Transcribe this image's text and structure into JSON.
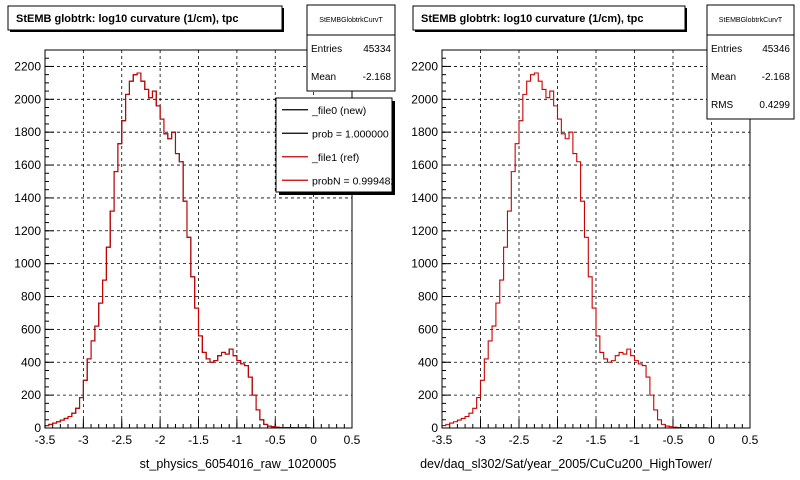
{
  "chart_data": [
    {
      "type": "histogram",
      "title": "StEMB globtrk: log10 curvature (1/cm), tpc",
      "xlabel": "st_physics_6054016_raw_1020005",
      "ylabel": "",
      "xlim": [
        -3.5,
        0.5
      ],
      "ylim": [
        0,
        2300
      ],
      "xticks": [
        -3.5,
        -3,
        -2.5,
        -2,
        -1.5,
        -1,
        -0.5,
        0,
        0.5
      ],
      "yticks": [
        0,
        200,
        400,
        600,
        800,
        1000,
        1200,
        1400,
        1600,
        1800,
        2000,
        2200
      ],
      "grid": true,
      "stats": {
        "name": "StEMBGlobtrkCurvT",
        "rows": [
          {
            "label": "Entries",
            "value": "45334"
          },
          {
            "label": "Mean",
            "value": "-2.168"
          }
        ]
      },
      "legend": {
        "position": "top-right",
        "entries": [
          {
            "label": "_file0 (new)",
            "color": "#000000"
          },
          {
            "label": "prob = 1.000000",
            "color": "#000000"
          },
          {
            "label": "_file1 (ref)",
            "color": "#cc0000"
          },
          {
            "label": "probN = 0.999482",
            "color": "#cc0000"
          }
        ]
      },
      "series": [
        {
          "name": "_file0 (new)",
          "color": "#000000",
          "bin_edges": [
            -3.5,
            0.5
          ],
          "values": [
            15,
            22,
            30,
            38,
            48,
            58,
            70,
            90,
            120,
            185,
            290,
            420,
            530,
            620,
            760,
            900,
            1100,
            1320,
            1560,
            1730,
            1870,
            2030,
            2110,
            2150,
            2160,
            2110,
            2060,
            2010,
            2050,
            1960,
            1880,
            1790,
            1760,
            1800,
            1670,
            1620,
            1380,
            1160,
            920,
            730,
            560,
            460,
            420,
            400,
            410,
            440,
            460,
            450,
            480,
            440,
            410,
            390,
            380,
            310,
            200,
            110,
            50,
            22,
            12,
            8,
            5,
            3,
            3,
            2,
            2,
            1,
            1,
            1,
            1,
            0,
            0,
            0,
            0,
            0,
            0,
            0,
            0,
            0,
            0,
            0
          ]
        },
        {
          "name": "_file1 (ref)",
          "color": "#cc0000",
          "bin_edges": [
            -3.5,
            0.5
          ],
          "values": [
            15,
            22,
            30,
            38,
            48,
            58,
            70,
            90,
            120,
            185,
            290,
            420,
            530,
            620,
            760,
            900,
            1100,
            1320,
            1560,
            1730,
            1870,
            2030,
            2110,
            2150,
            2160,
            2110,
            2060,
            2010,
            2050,
            1960,
            1880,
            1790,
            1760,
            1800,
            1670,
            1620,
            1380,
            1160,
            920,
            730,
            560,
            460,
            420,
            400,
            410,
            440,
            460,
            450,
            480,
            440,
            410,
            390,
            380,
            310,
            200,
            110,
            50,
            22,
            12,
            8,
            5,
            3,
            3,
            2,
            2,
            1,
            1,
            1,
            1,
            0,
            0,
            0,
            0,
            0,
            0,
            0,
            0,
            0,
            0,
            0
          ]
        }
      ]
    },
    {
      "type": "histogram",
      "title": "StEMB globtrk: log10 curvature (1/cm), tpc",
      "xlabel": "dev/daq_sl302/Sat/year_2005/CuCu200_HighTower/",
      "ylabel": "",
      "xlim": [
        -3.5,
        0.5
      ],
      "ylim": [
        0,
        2300
      ],
      "xticks": [
        -3.5,
        -3,
        -2.5,
        -2,
        -1.5,
        -1,
        -0.5,
        0,
        0.5
      ],
      "yticks": [
        0,
        200,
        400,
        600,
        800,
        1000,
        1200,
        1400,
        1600,
        1800,
        2000,
        2200
      ],
      "grid": true,
      "stats": {
        "name": "StEMBGlobtrkCurvT",
        "rows": [
          {
            "label": "Entries",
            "value": "45346"
          },
          {
            "label": "Mean",
            "value": "-2.168"
          },
          {
            "label": "RMS",
            "value": "0.4299"
          }
        ]
      },
      "series": [
        {
          "name": "",
          "color": "#cc0000",
          "bin_edges": [
            -3.5,
            0.5
          ],
          "values": [
            15,
            22,
            30,
            38,
            48,
            58,
            70,
            90,
            120,
            185,
            290,
            420,
            530,
            620,
            760,
            900,
            1100,
            1320,
            1560,
            1730,
            1870,
            2030,
            2110,
            2150,
            2160,
            2110,
            2060,
            2010,
            2050,
            1960,
            1880,
            1790,
            1760,
            1800,
            1670,
            1620,
            1380,
            1160,
            920,
            730,
            560,
            460,
            420,
            400,
            410,
            440,
            460,
            450,
            480,
            440,
            410,
            390,
            380,
            310,
            200,
            110,
            50,
            22,
            12,
            8,
            5,
            3,
            3,
            2,
            2,
            1,
            1,
            1,
            1,
            0,
            0,
            0,
            0,
            0,
            0,
            0,
            0,
            0,
            0,
            0
          ]
        }
      ]
    }
  ]
}
